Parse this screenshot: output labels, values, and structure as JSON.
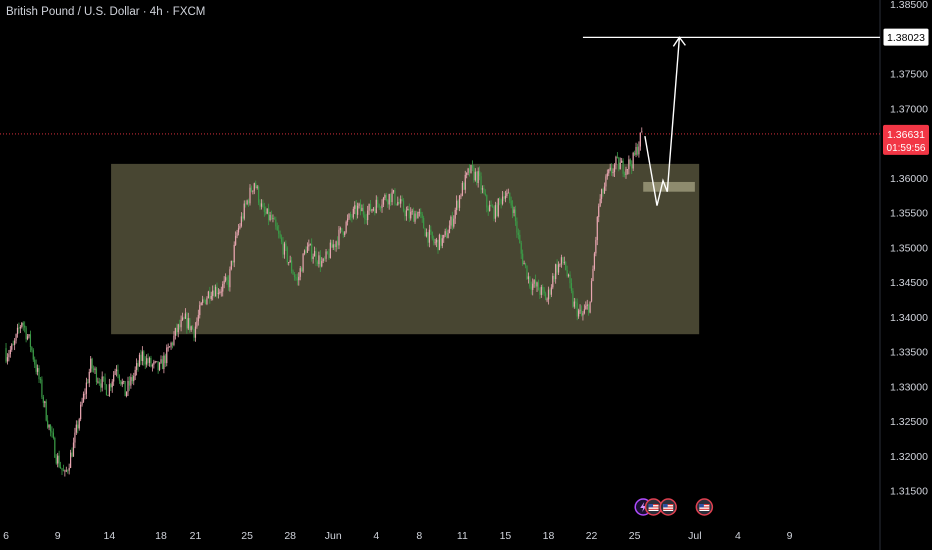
{
  "symbol_title": "British Pound / U.S. Dollar · 4h · FXCM",
  "chart_data": {
    "type": "candlestick",
    "title": "British Pound / U.S. Dollar · 4h · FXCM",
    "ylim": [
      1.3125,
      1.385
    ],
    "y_ticks": [
      "1.38500",
      "1.37500",
      "1.37000",
      "1.36000",
      "1.35500",
      "1.35000",
      "1.34500",
      "1.34000",
      "1.33500",
      "1.33000",
      "1.32500",
      "1.32000",
      "1.31500"
    ],
    "x_ticks": [
      {
        "label": "6",
        "pos": 0
      },
      {
        "label": "9",
        "pos": 6
      },
      {
        "label": "14",
        "pos": 12
      },
      {
        "label": "18",
        "pos": 18
      },
      {
        "label": "21",
        "pos": 22
      },
      {
        "label": "25",
        "pos": 28
      },
      {
        "label": "28",
        "pos": 33
      },
      {
        "label": "Jun",
        "pos": 38
      },
      {
        "label": "4",
        "pos": 43
      },
      {
        "label": "8",
        "pos": 48
      },
      {
        "label": "11",
        "pos": 53
      },
      {
        "label": "15",
        "pos": 58
      },
      {
        "label": "18",
        "pos": 63
      },
      {
        "label": "22",
        "pos": 68
      },
      {
        "label": "25",
        "pos": 73
      },
      {
        "label": "Jul",
        "pos": 80
      },
      {
        "label": "4",
        "pos": 85
      },
      {
        "label": "9",
        "pos": 91
      }
    ],
    "x_pos_range": [
      -0.7,
      101.5
    ],
    "daily_closes": [
      1.3355,
      1.3395,
      1.336,
      1.331,
      1.325,
      1.32,
      1.317,
      1.3215,
      1.3275,
      1.333,
      1.331,
      1.3295,
      1.333,
      1.329,
      1.3315,
      1.3345,
      1.333,
      1.3325,
      1.335,
      1.338,
      1.3395,
      1.338,
      1.342,
      1.344,
      1.344,
      1.345,
      1.352,
      1.356,
      1.3595,
      1.355,
      1.354,
      1.351,
      1.348,
      1.345,
      1.35,
      1.349,
      1.3475,
      1.35,
      1.352,
      1.354,
      1.3555,
      1.355,
      1.356,
      1.357,
      1.3575,
      1.356,
      1.3545,
      1.355,
      1.352,
      1.3505,
      1.351,
      1.354,
      1.358,
      1.361,
      1.36,
      1.356,
      1.355,
      1.358,
      1.356,
      1.349,
      1.345,
      1.344,
      1.3425,
      1.347,
      1.348,
      1.342,
      1.34,
      1.342,
      1.356,
      1.36,
      1.362,
      1.3615,
      1.3625,
      1.3663
    ],
    "current_price": "1.36631",
    "countdown": "01:59:56",
    "target_price": "1.38023",
    "range_box": {
      "y_top": 1.362,
      "y_bottom": 1.3375,
      "x_start": 12.2,
      "x_end": 80.5
    },
    "retest_zone": {
      "y_top": 1.3594,
      "y_bottom": 1.358,
      "x_start": 74,
      "x_end": 80
    },
    "projection_path": [
      [
        74.2,
        1.366
      ],
      [
        75.6,
        1.356
      ],
      [
        76.3,
        1.3596
      ],
      [
        76.8,
        1.358
      ],
      [
        78.2,
        1.3802
      ]
    ],
    "target_line": {
      "y": 1.3802,
      "x_start": 67,
      "x_end": 101.5
    },
    "event_icons": [
      "lightning-event-icon",
      "us-flag-event-icon",
      "us-flag-event-icon",
      "us-flag-event-icon"
    ]
  }
}
